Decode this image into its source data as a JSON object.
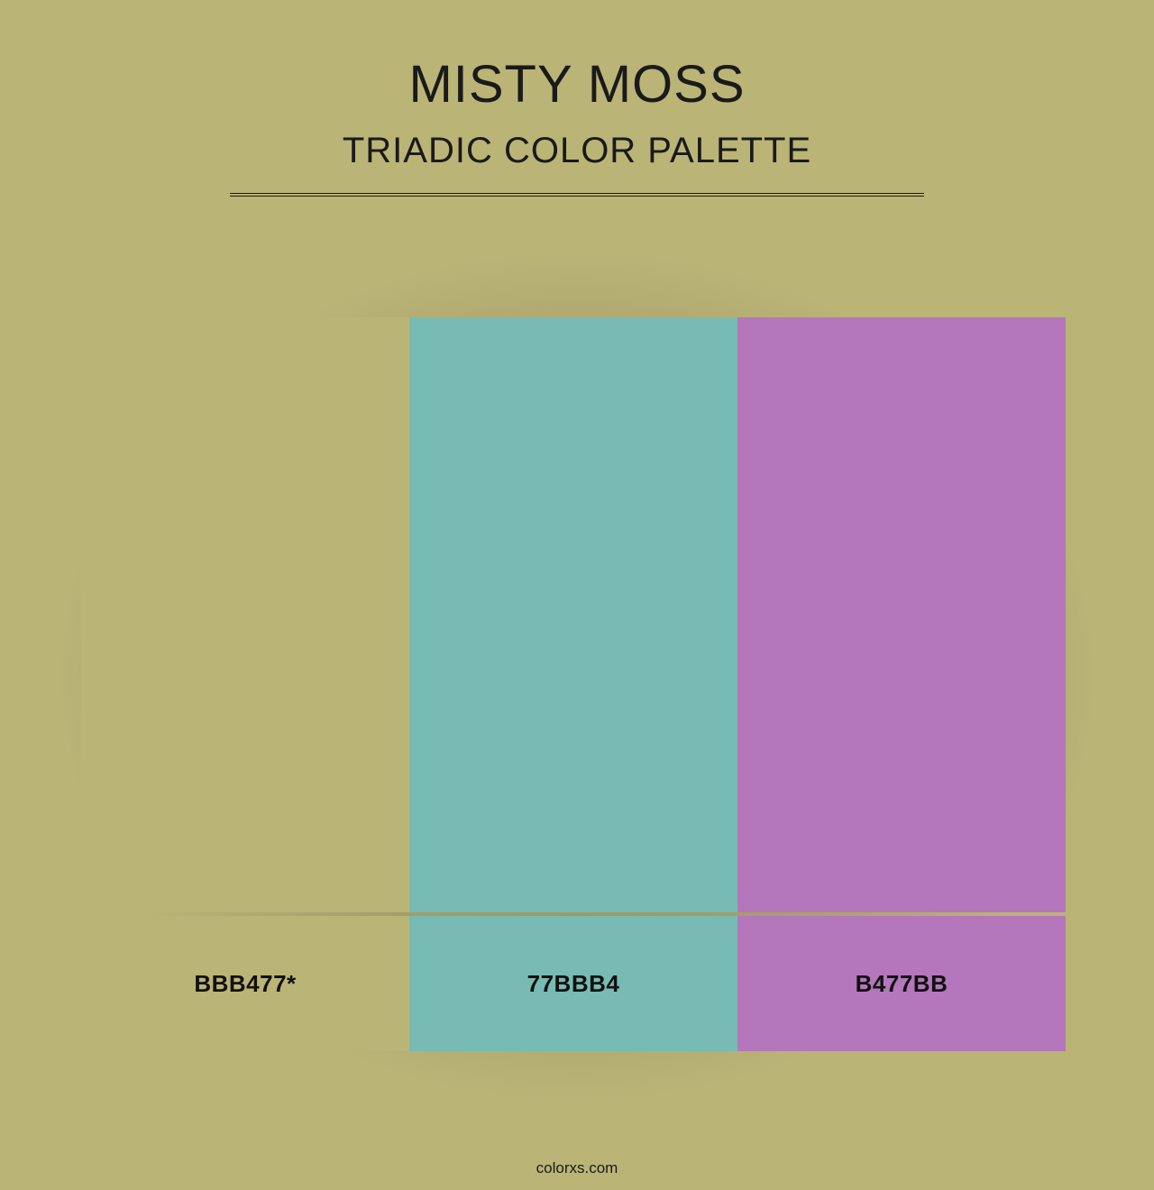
{
  "background_color": "#bbb477",
  "header": {
    "title": "MISTY MOSS",
    "subtitle": "TRIADIC COLOR PALETTE",
    "title_color": "#1a1a1a",
    "subtitle_color": "#1a1a1a",
    "title_fontsize": 58,
    "subtitle_fontsize": 40,
    "divider_color": "#1a1a1a",
    "divider_width": 770
  },
  "palette": {
    "type": "color-palette",
    "layout": "horizontal",
    "swatch_height": 660,
    "label_row_height": 150,
    "gap_between_rows": 4,
    "swatch_count": 3,
    "label_fontsize": 26,
    "label_font_weight": 700,
    "label_color": "#111111",
    "shadow": {
      "type": "radial",
      "color": "rgba(0,0,0,0.35)"
    },
    "swatches": [
      {
        "hex": "#bbb477",
        "label": "BBB477*"
      },
      {
        "hex": "#77bbb4",
        "label": "77BBB4"
      },
      {
        "hex": "#b477bb",
        "label": "B477BB"
      }
    ]
  },
  "footer": {
    "text": "colorxs.com",
    "color": "#1a1a1a",
    "fontsize": 17
  }
}
